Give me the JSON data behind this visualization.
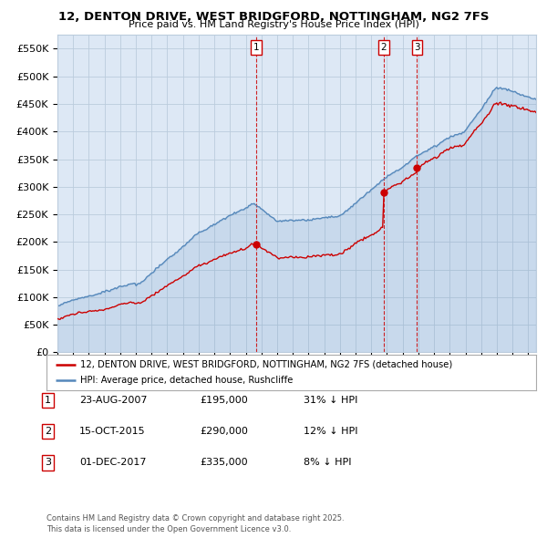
{
  "title": "12, DENTON DRIVE, WEST BRIDGFORD, NOTTINGHAM, NG2 7FS",
  "subtitle": "Price paid vs. HM Land Registry's House Price Index (HPI)",
  "ylabel_ticks": [
    "£0",
    "£50K",
    "£100K",
    "£150K",
    "£200K",
    "£250K",
    "£300K",
    "£350K",
    "£400K",
    "£450K",
    "£500K",
    "£550K"
  ],
  "ylim": [
    0,
    575000
  ],
  "xlim_start": 1995.0,
  "xlim_end": 2025.5,
  "sale_dates": [
    2007.644,
    2015.789,
    2017.917
  ],
  "sale_prices": [
    195000,
    290000,
    335000
  ],
  "sale_labels": [
    "1",
    "2",
    "3"
  ],
  "legend_entries": [
    "12, DENTON DRIVE, WEST BRIDGFORD, NOTTINGHAM, NG2 7FS (detached house)",
    "HPI: Average price, detached house, Rushcliffe"
  ],
  "table_rows": [
    {
      "num": "1",
      "date": "23-AUG-2007",
      "price": "£195,000",
      "hpi": "31% ↓ HPI"
    },
    {
      "num": "2",
      "date": "15-OCT-2015",
      "price": "£290,000",
      "hpi": "12% ↓ HPI"
    },
    {
      "num": "3",
      "date": "01-DEC-2017",
      "price": "£335,000",
      "hpi": "8% ↓ HPI"
    }
  ],
  "footer": "Contains HM Land Registry data © Crown copyright and database right 2025.\nThis data is licensed under the Open Government Licence v3.0.",
  "line_color_red": "#cc0000",
  "line_color_blue": "#5588bb",
  "vline_color": "#cc0000",
  "bg_color": "#e8f0f8",
  "plot_bg_color": "#dde8f5",
  "grid_color": "#bbccdd",
  "white": "#ffffff"
}
